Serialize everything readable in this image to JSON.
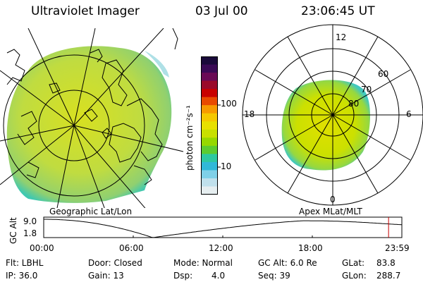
{
  "header": {
    "title": "Ultraviolet Imager",
    "date": "03 Jul 00",
    "time": "23:06:45 UT"
  },
  "colorbar": {
    "unit": "photon cm⁻²s⁻¹",
    "ticks": [
      "100",
      "10"
    ],
    "colors": [
      "#1a0a3a",
      "#3a0a55",
      "#6a0a55",
      "#9a0a2a",
      "#c80000",
      "#e84a00",
      "#f79a00",
      "#f5c800",
      "#e8e000",
      "#c8e000",
      "#96d800",
      "#5ccc30",
      "#2ec8a0",
      "#30b8d8",
      "#7fd0e8",
      "#c0e0ec",
      "#e6eef0"
    ]
  },
  "left_map": {
    "label": "Geographic Lat/Lon"
  },
  "right_map": {
    "label": "Apex MLat/MLT",
    "mlt_labels": {
      "top": "12",
      "left": "18",
      "right": "6",
      "bottom": "0"
    },
    "lat_labels": [
      "60",
      "70",
      "80"
    ]
  },
  "timeline": {
    "ylabel": "GC Alt",
    "y_ticks": [
      "9.0",
      "1.8"
    ],
    "x_ticks": [
      "00:00",
      "06:00",
      "12:00",
      "18:00",
      "23:59"
    ],
    "current_marker_hours": 23.11
  },
  "footer": {
    "flt": "Flt: LBHL",
    "ip": "IP: 36.0",
    "door": "Door: Closed",
    "gain": "Gain: 13",
    "mode": "Mode: Normal",
    "dsp_label": "Dsp:",
    "dsp_value": "4.0",
    "gc_alt": "GC Alt: 6.0 Re",
    "seq": "Seq: 39",
    "glat_label": "GLat:",
    "glat_value": "83.8",
    "glon_label": "GLon:",
    "glon_value": "288.7"
  },
  "colors": {
    "aurora_fill": "#c8e030",
    "aurora_cyan": "#30c8c0",
    "marker": "#c80000"
  }
}
